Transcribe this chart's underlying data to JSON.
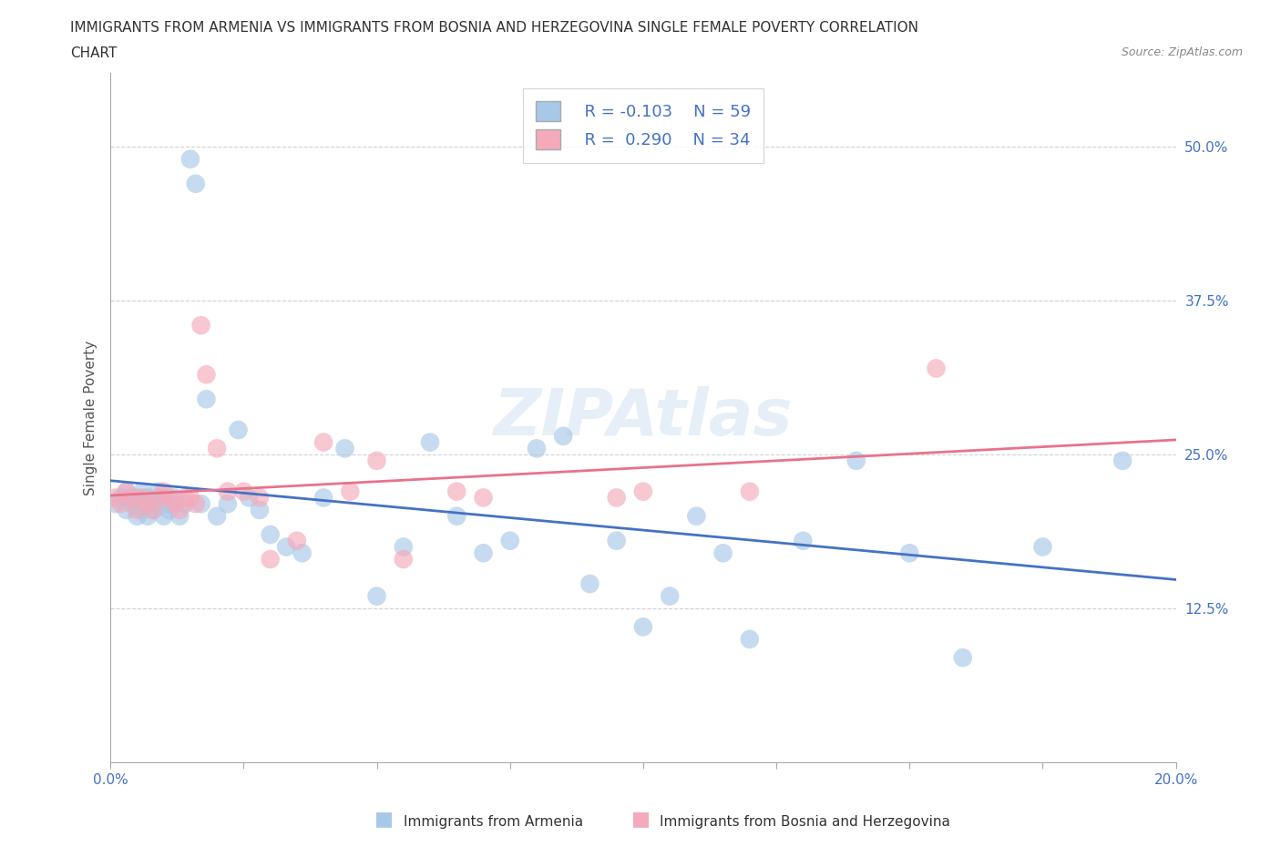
{
  "title_line1": "IMMIGRANTS FROM ARMENIA VS IMMIGRANTS FROM BOSNIA AND HERZEGOVINA SINGLE FEMALE POVERTY CORRELATION",
  "title_line2": "CHART",
  "source_text": "Source: ZipAtlas.com",
  "ylabel": "Single Female Poverty",
  "legend_r1": "R = -0.103",
  "legend_n1": "N = 59",
  "legend_r2": "R =  0.290",
  "legend_n2": "N = 34",
  "xlim": [
    0.0,
    0.2
  ],
  "ylim": [
    0.0,
    0.56
  ],
  "xticks": [
    0.0,
    0.025,
    0.05,
    0.075,
    0.1,
    0.125,
    0.15,
    0.175,
    0.2
  ],
  "ytick_positions": [
    0.125,
    0.25,
    0.375,
    0.5
  ],
  "ytick_labels": [
    "12.5%",
    "25.0%",
    "37.5%",
    "50.0%"
  ],
  "color_armenia": "#A8C8E8",
  "color_bosnia": "#F4AABB",
  "line_color_armenia": "#4472C4",
  "line_color_bosnia": "#E8728A",
  "scatter_armenia_x": [
    0.001,
    0.002,
    0.003,
    0.003,
    0.004,
    0.004,
    0.005,
    0.005,
    0.006,
    0.006,
    0.007,
    0.007,
    0.007,
    0.008,
    0.008,
    0.009,
    0.009,
    0.01,
    0.01,
    0.011,
    0.011,
    0.012,
    0.013,
    0.014,
    0.015,
    0.016,
    0.017,
    0.018,
    0.02,
    0.022,
    0.024,
    0.026,
    0.028,
    0.03,
    0.033,
    0.036,
    0.04,
    0.044,
    0.05,
    0.055,
    0.06,
    0.065,
    0.07,
    0.075,
    0.08,
    0.085,
    0.09,
    0.095,
    0.1,
    0.105,
    0.11,
    0.115,
    0.12,
    0.13,
    0.14,
    0.15,
    0.16,
    0.175,
    0.19
  ],
  "scatter_armenia_y": [
    0.21,
    0.215,
    0.205,
    0.22,
    0.21,
    0.215,
    0.2,
    0.215,
    0.205,
    0.22,
    0.2,
    0.21,
    0.215,
    0.205,
    0.21,
    0.215,
    0.22,
    0.2,
    0.215,
    0.21,
    0.205,
    0.215,
    0.2,
    0.21,
    0.49,
    0.47,
    0.21,
    0.295,
    0.2,
    0.21,
    0.27,
    0.215,
    0.205,
    0.185,
    0.175,
    0.17,
    0.215,
    0.255,
    0.135,
    0.175,
    0.26,
    0.2,
    0.17,
    0.18,
    0.255,
    0.265,
    0.145,
    0.18,
    0.11,
    0.135,
    0.2,
    0.17,
    0.1,
    0.18,
    0.245,
    0.17,
    0.085,
    0.175,
    0.245
  ],
  "scatter_bosnia_x": [
    0.001,
    0.002,
    0.003,
    0.004,
    0.005,
    0.006,
    0.007,
    0.008,
    0.009,
    0.01,
    0.011,
    0.012,
    0.013,
    0.014,
    0.015,
    0.016,
    0.017,
    0.018,
    0.02,
    0.022,
    0.025,
    0.028,
    0.03,
    0.035,
    0.04,
    0.045,
    0.05,
    0.055,
    0.065,
    0.07,
    0.095,
    0.1,
    0.12,
    0.155
  ],
  "scatter_bosnia_y": [
    0.215,
    0.21,
    0.22,
    0.215,
    0.205,
    0.215,
    0.21,
    0.205,
    0.215,
    0.22,
    0.215,
    0.21,
    0.205,
    0.215,
    0.215,
    0.21,
    0.355,
    0.315,
    0.255,
    0.22,
    0.22,
    0.215,
    0.165,
    0.18,
    0.26,
    0.22,
    0.245,
    0.165,
    0.22,
    0.215,
    0.215,
    0.22,
    0.22,
    0.32
  ],
  "title_fontsize": 11,
  "axis_label_fontsize": 11,
  "tick_fontsize": 11,
  "legend_fontsize": 13,
  "background_color": "#FFFFFF",
  "grid_color": "#CCCCCC"
}
